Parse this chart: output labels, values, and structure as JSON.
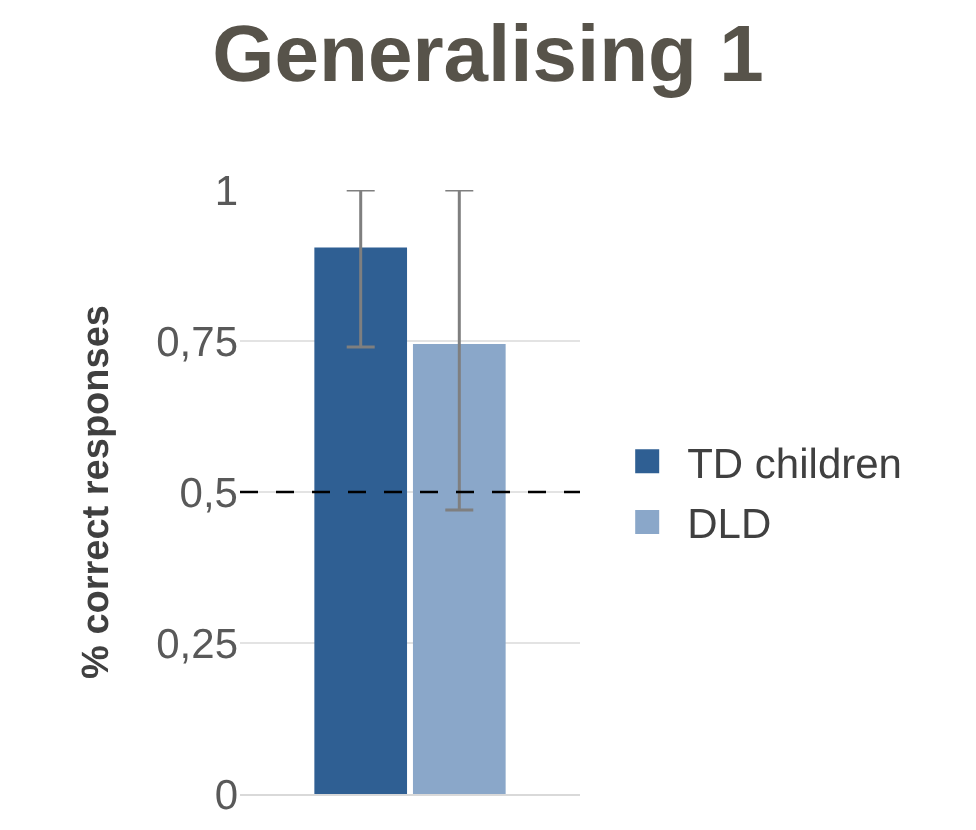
{
  "chart_data": {
    "type": "bar",
    "title": "Generalising 1",
    "ylabel": "% correct responses",
    "categories": [
      null
    ],
    "series": [
      {
        "name": "TD children",
        "color": "#2f5f93",
        "values": [
          0.905
        ],
        "errors": [
          [
            0.74,
            1
          ]
        ]
      },
      {
        "name": "DLD",
        "color": "#8aa7c9",
        "values": [
          0.745
        ],
        "errors": [
          [
            0.47,
            1
          ]
        ]
      }
    ],
    "ylim": [
      0,
      1
    ],
    "yticks": [
      0,
      {
        "value": 0.25,
        "label": "0,25"
      },
      {
        "value": 0.5,
        "label": "0,5"
      },
      {
        "value": 0.75,
        "label": "0,75"
      },
      1
    ],
    "ref_lines": [
      {
        "axis": "y",
        "value": 0.5,
        "color": "#000000",
        "line_style": "dashed"
      }
    ],
    "grid": "y",
    "legend": "right"
  }
}
